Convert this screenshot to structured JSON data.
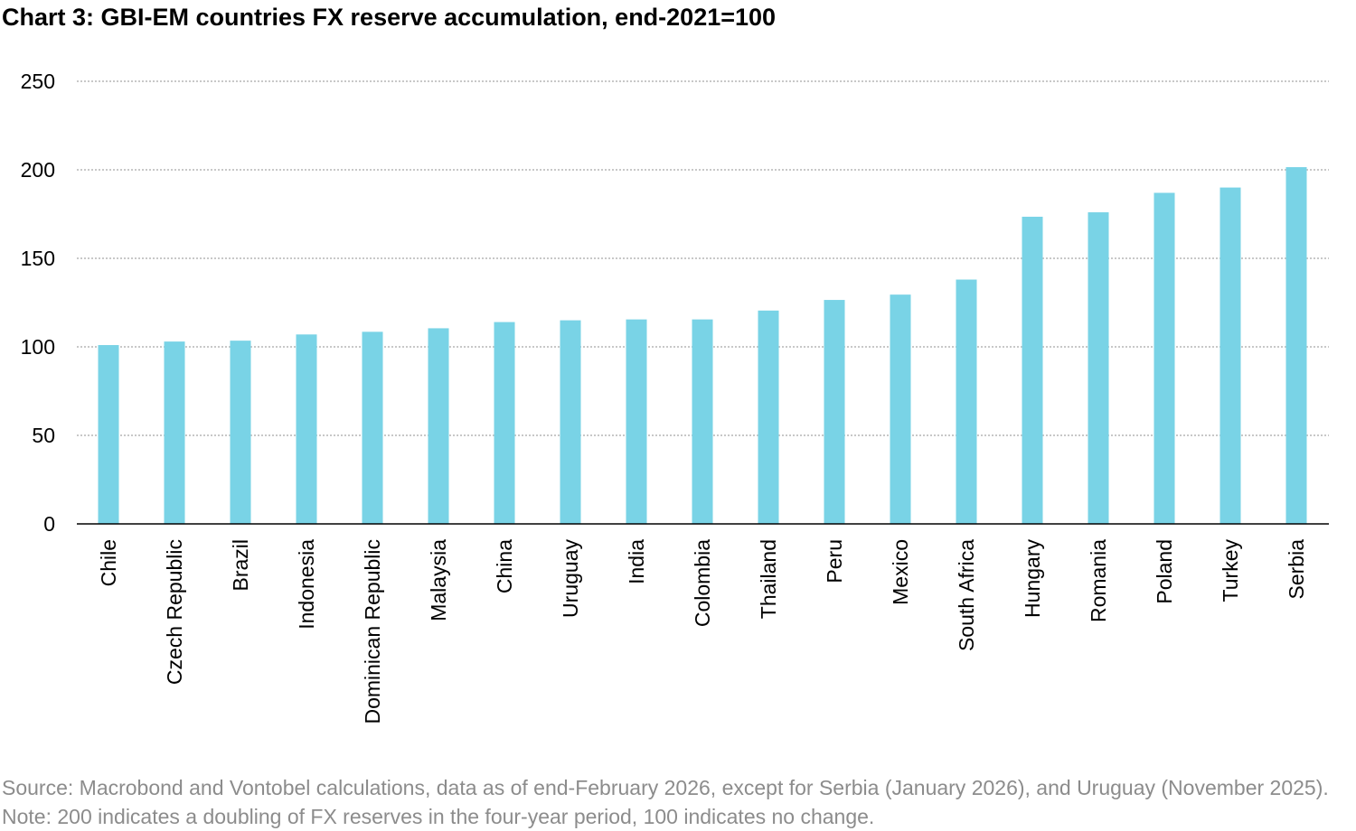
{
  "chart_data": {
    "type": "bar",
    "title": "Chart 3: GBI-EM countries FX reserve accumulation, end-2021=100",
    "xlabel": "",
    "ylabel": "",
    "ylim": [
      0,
      250
    ],
    "yticks": [
      0,
      50,
      100,
      150,
      200,
      250
    ],
    "grid": true,
    "bar_color": "#79d3e6",
    "categories": [
      "Chile",
      "Czech Republic",
      "Brazil",
      "Indonesia",
      "Dominican Republic",
      "Malaysia",
      "China",
      "Uruguay",
      "India",
      "Colombia",
      "Thailand",
      "Peru",
      "Mexico",
      "South Africa",
      "Hungary",
      "Romania",
      "Poland",
      "Turkey",
      "Serbia"
    ],
    "values": [
      101,
      103,
      103.5,
      107,
      108.5,
      110.5,
      114,
      115,
      115.5,
      115.5,
      120.5,
      126.5,
      129.5,
      138,
      173.5,
      176,
      187,
      190,
      201.5
    ]
  },
  "source_note": "Source: Macrobond and Vontobel calculations, data as of end-February 2026, except for Serbia (January 2026), and Uruguay (November 2025). Note: 200 indicates a doubling of FX reserves in the four-year period, 100 indicates no change."
}
